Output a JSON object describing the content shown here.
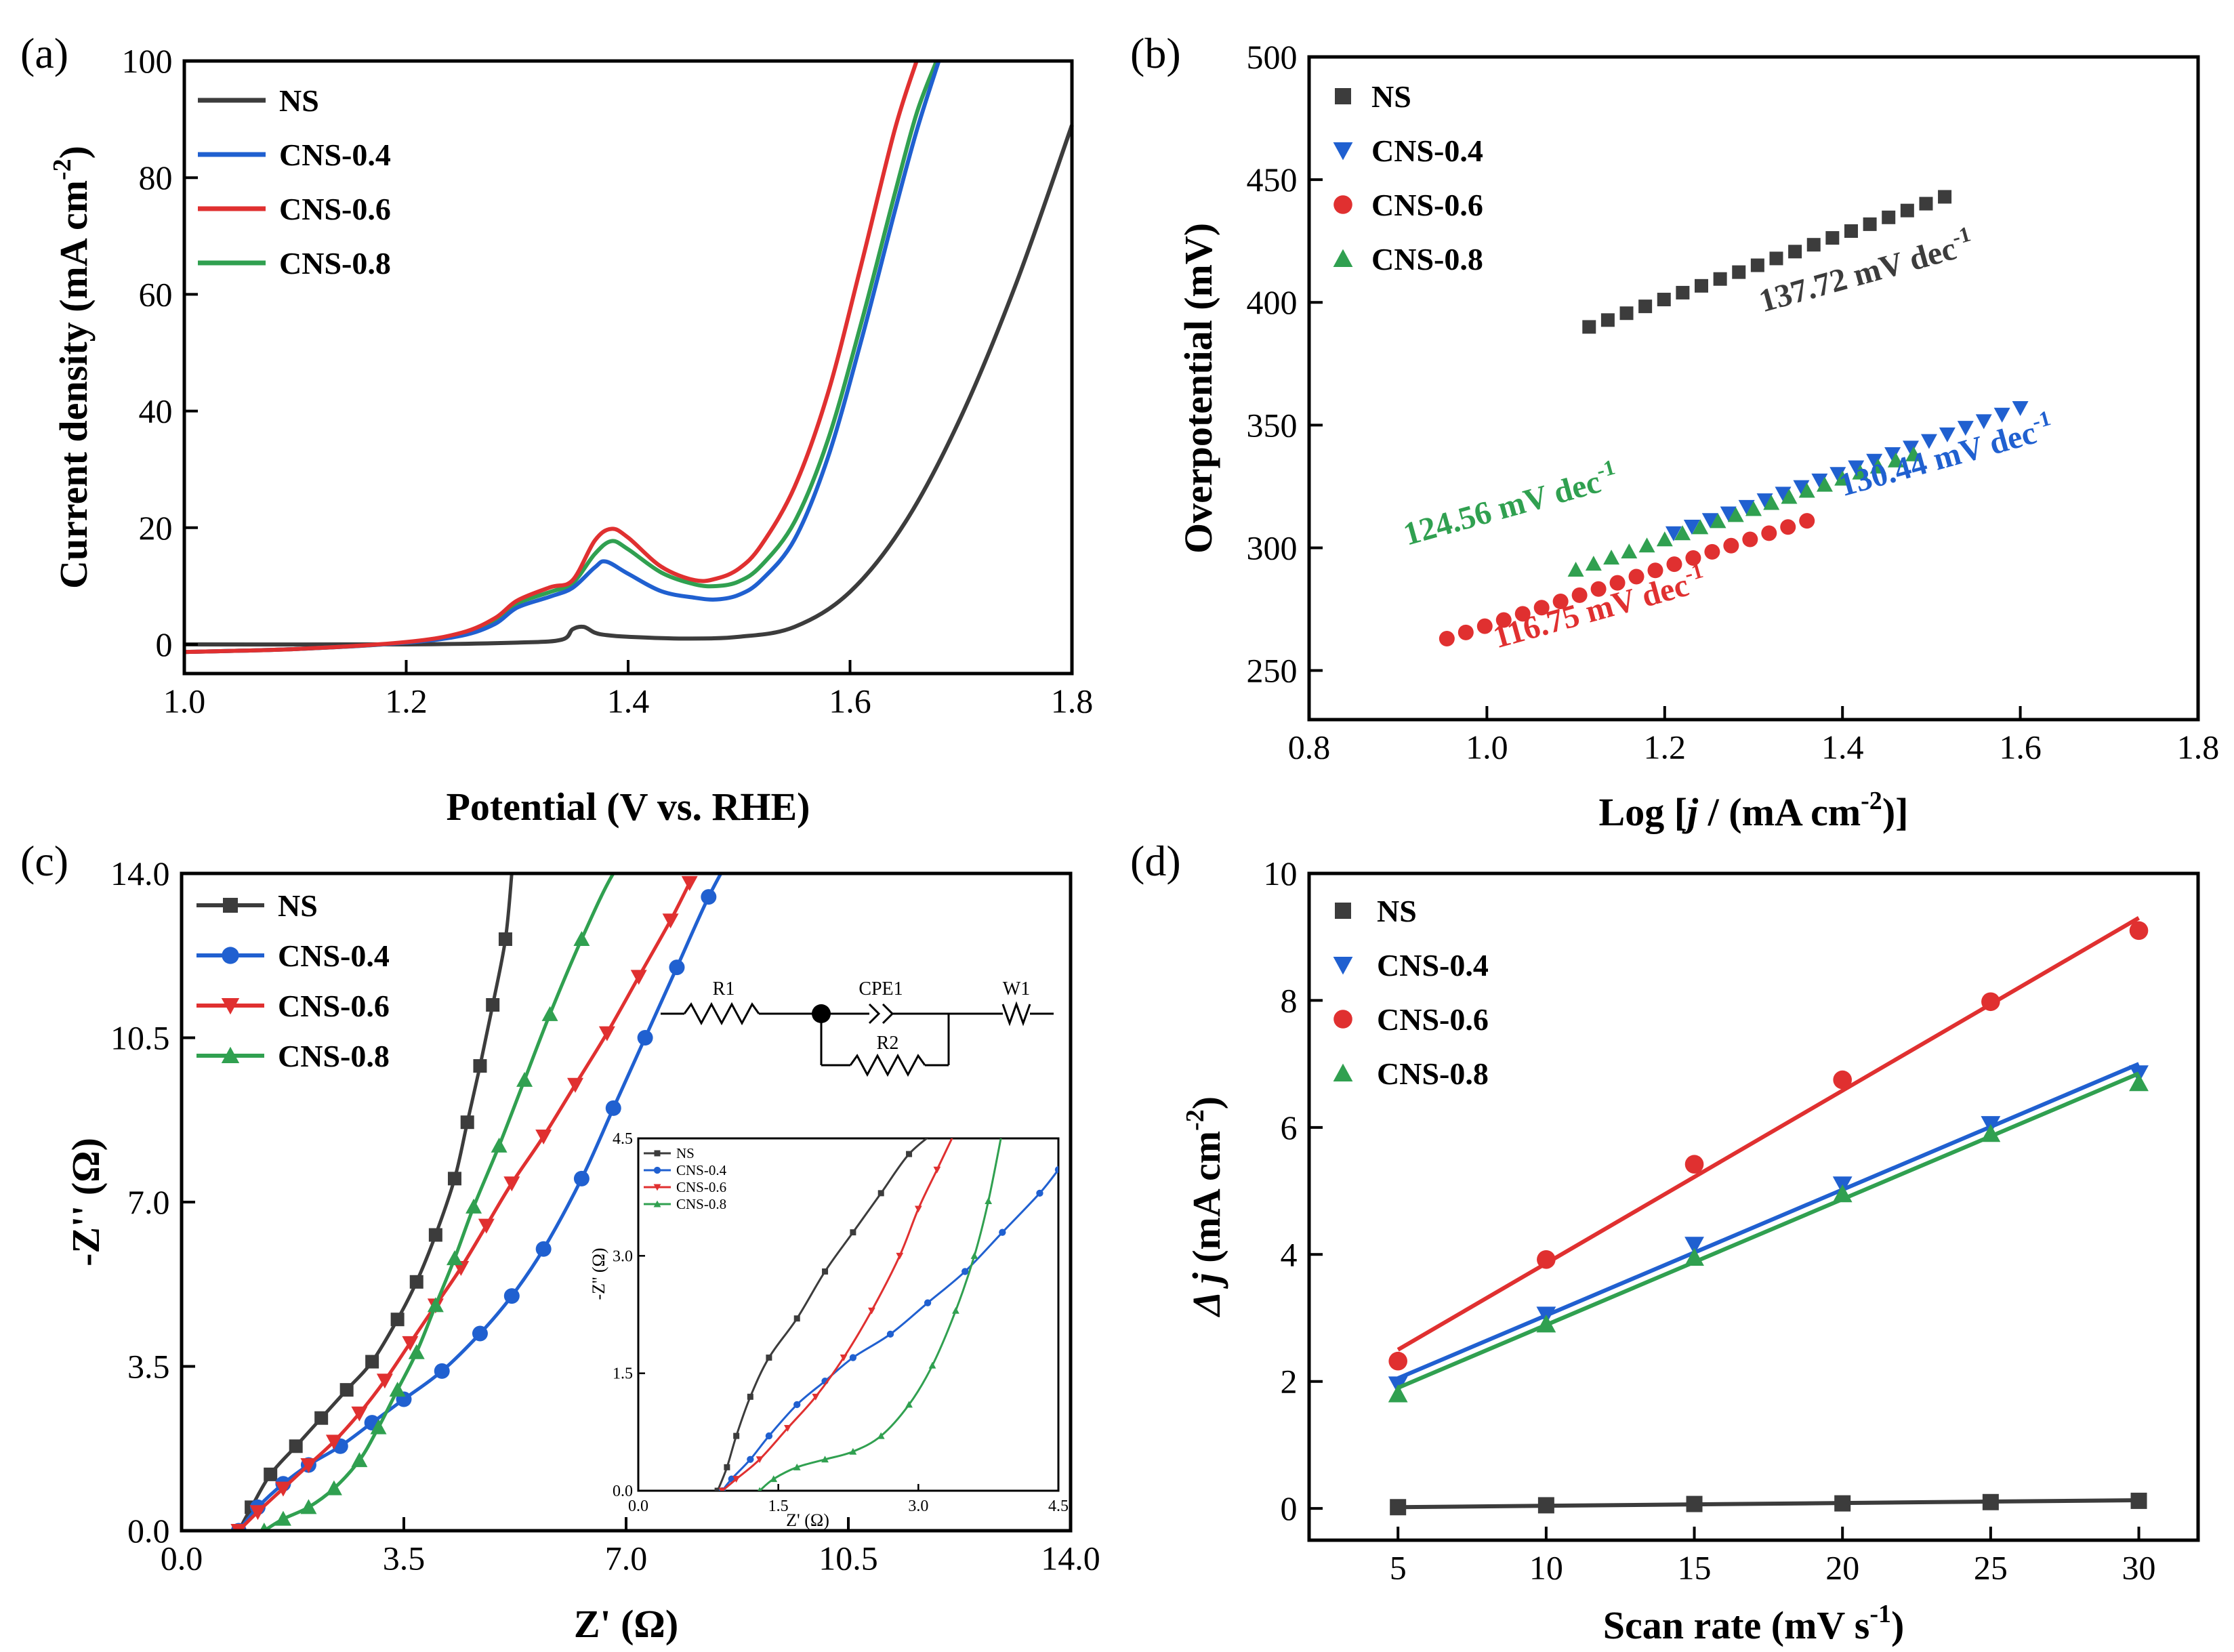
{
  "colors": {
    "NS": "#3c3c3c",
    "CNS-0.4": "#2060d0",
    "CNS-0.6": "#e03030",
    "CNS-0.8": "#30a050"
  },
  "chart_data": [
    {
      "id": "a",
      "panel_label": "(a)",
      "type": "line",
      "xlabel": "Potential (V vs. RHE)",
      "ylabel_main": "Current density (mA cm",
      "ylabel_sup": "-2",
      "ylabel_end": ")",
      "xlim": [
        1.0,
        1.8
      ],
      "ylim": [
        -5,
        100
      ],
      "xticks": [
        1.0,
        1.2,
        1.4,
        1.6,
        1.8
      ],
      "xtick_labels": [
        "1.0",
        "1.2",
        "1.4",
        "1.6",
        "1.8"
      ],
      "yticks": [
        0,
        20,
        40,
        60,
        80,
        100
      ],
      "ytick_labels": [
        "0",
        "20",
        "40",
        "60",
        "80",
        "100"
      ],
      "legend": [
        "NS",
        "CNS-0.4",
        "CNS-0.6",
        "CNS-0.8"
      ],
      "series": [
        {
          "name": "NS",
          "x": [
            1.0,
            1.2,
            1.3,
            1.34,
            1.35,
            1.36,
            1.37,
            1.38,
            1.4,
            1.45,
            1.5,
            1.55,
            1.6,
            1.65,
            1.7,
            1.75,
            1.8
          ],
          "y": [
            0,
            0,
            0.3,
            0.8,
            2.6,
            3.0,
            2.0,
            1.6,
            1.3,
            1.0,
            1.3,
            3,
            9,
            21,
            39,
            62,
            89
          ]
        },
        {
          "name": "CNS-0.4",
          "x": [
            1.0,
            1.1,
            1.2,
            1.25,
            1.28,
            1.3,
            1.33,
            1.35,
            1.37,
            1.38,
            1.4,
            1.43,
            1.46,
            1.48,
            1.5,
            1.52,
            1.55,
            1.58,
            1.61,
            1.64,
            1.66,
            1.68
          ],
          "y": [
            -1.3,
            -0.8,
            0.3,
            1.5,
            3.5,
            6.3,
            8.2,
            9.7,
            13.2,
            14.2,
            12.1,
            9.1,
            8.0,
            7.7,
            8.5,
            11,
            18,
            32,
            52,
            74,
            88,
            100
          ]
        },
        {
          "name": "CNS-0.6",
          "x": [
            1.0,
            1.1,
            1.2,
            1.25,
            1.28,
            1.3,
            1.33,
            1.35,
            1.37,
            1.385,
            1.4,
            1.43,
            1.46,
            1.48,
            1.5,
            1.52,
            1.55,
            1.58,
            1.61,
            1.64,
            1.66
          ],
          "y": [
            -1.3,
            -0.8,
            0.4,
            2,
            4.5,
            7.5,
            9.8,
            11,
            17.8,
            19.8,
            18.3,
            13.3,
            11,
            11.3,
            13,
            17,
            27,
            43,
            65,
            88,
            100
          ]
        },
        {
          "name": "CNS-0.8",
          "x": [
            1.0,
            1.1,
            1.2,
            1.25,
            1.28,
            1.3,
            1.33,
            1.35,
            1.37,
            1.385,
            1.4,
            1.43,
            1.46,
            1.48,
            1.5,
            1.52,
            1.55,
            1.58,
            1.61,
            1.64,
            1.66,
            1.678
          ],
          "y": [
            -1.3,
            -0.8,
            0.3,
            1.7,
            4,
            7,
            9,
            10.5,
            15.5,
            17.7,
            16.3,
            12.3,
            10.3,
            10,
            10.8,
            13.5,
            21,
            35,
            55,
            77,
            91,
            100
          ]
        }
      ]
    },
    {
      "id": "b",
      "panel_label": "(b)",
      "type": "scatter",
      "xlabel_pre": "Log [",
      "xlabel_italic": "j",
      "xlabel_mid": " / (mA cm",
      "xlabel_sup": "-2",
      "xlabel_end": ")]",
      "ylabel": "Overpotential (mV)",
      "xlim": [
        0.8,
        1.8
      ],
      "ylim": [
        230,
        500
      ],
      "xticks": [
        0.8,
        1.0,
        1.2,
        1.4,
        1.6,
        1.8
      ],
      "xtick_labels": [
        "0.8",
        "1.0",
        "1.2",
        "1.4",
        "1.6",
        "1.8"
      ],
      "yticks": [
        250,
        300,
        350,
        400,
        450,
        500
      ],
      "ytick_labels": [
        "250",
        "300",
        "350",
        "400",
        "450",
        "500"
      ],
      "legend": [
        "NS",
        "CNS-0.4",
        "CNS-0.6",
        "CNS-0.8"
      ],
      "series": [
        {
          "name": "NS",
          "x_start": 1.115,
          "x_end": 1.515,
          "y_start": 390,
          "y_end": 443,
          "n": 20
        },
        {
          "name": "CNS-0.4",
          "x_start": 1.21,
          "x_end": 1.6,
          "y_start": 306,
          "y_end": 357,
          "n": 20
        },
        {
          "name": "CNS-0.6",
          "x_start": 0.955,
          "x_end": 1.36,
          "y_start": 263,
          "y_end": 311,
          "n": 20
        },
        {
          "name": "CNS-0.8",
          "x_start": 1.1,
          "x_end": 1.48,
          "y_start": 291,
          "y_end": 338,
          "n": 20
        }
      ],
      "annotations": [
        {
          "series": "NS",
          "mantissa": "137.72 mV dec",
          "exp": "-1",
          "at": [
            1.43,
            408
          ],
          "angle": -15.5
        },
        {
          "series": "CNS-0.4",
          "mantissa": "130.44 mV dec",
          "exp": "-1",
          "at": [
            1.52,
            333
          ],
          "angle": -15.5
        },
        {
          "series": "CNS-0.6",
          "mantissa": "116.75 mV dec",
          "exp": "-1",
          "at": [
            1.13,
            271
          ],
          "angle": -15.5
        },
        {
          "series": "CNS-0.8",
          "mantissa": "124.56 mV dec",
          "exp": "-1",
          "at": [
            1.03,
            313
          ],
          "angle": -15.5
        }
      ]
    },
    {
      "id": "c",
      "panel_label": "(c)",
      "type": "scatter",
      "xlabel": "Z' (Ω)",
      "ylabel": "-Z'' (Ω)",
      "xlim": [
        0,
        14
      ],
      "ylim": [
        0,
        14
      ],
      "xticks": [
        0,
        3.5,
        7,
        10.5,
        14
      ],
      "xtick_labels": [
        "0.0",
        "3.5",
        "7.0",
        "10.5",
        "14.0"
      ],
      "yticks": [
        0,
        3.5,
        7,
        10.5,
        14
      ],
      "ytick_labels": [
        "0.0",
        "3.5",
        "7.0",
        "10.5",
        "14.0"
      ],
      "legend": [
        "NS",
        "CNS-0.4",
        "CNS-0.6",
        "CNS-0.8"
      ],
      "series": [
        {
          "name": "NS",
          "x": [
            0.9,
            1.1,
            1.4,
            1.8,
            2.2,
            2.6,
            3.0,
            3.4,
            3.7,
            4.0,
            4.3,
            4.5,
            4.7,
            4.9,
            5.1,
            5.2
          ],
          "y": [
            0,
            0.5,
            1.2,
            1.8,
            2.4,
            3.0,
            3.6,
            4.5,
            5.3,
            6.3,
            7.5,
            8.7,
            9.9,
            11.2,
            12.6,
            14
          ]
        },
        {
          "name": "CNS-0.4",
          "x": [
            0.9,
            1.2,
            1.6,
            2.0,
            2.5,
            3.0,
            3.5,
            4.1,
            4.7,
            5.2,
            5.7,
            6.3,
            6.8,
            7.3,
            7.8,
            8.3,
            8.7
          ],
          "y": [
            0,
            0.5,
            1.0,
            1.4,
            1.8,
            2.3,
            2.8,
            3.4,
            4.2,
            5.0,
            6.0,
            7.5,
            9.0,
            10.5,
            12.0,
            13.5,
            14.5
          ]
        },
        {
          "name": "CNS-0.6",
          "x": [
            0.9,
            1.2,
            1.6,
            2.0,
            2.4,
            2.8,
            3.2,
            3.6,
            4.0,
            4.4,
            4.8,
            5.2,
            5.7,
            6.2,
            6.7,
            7.2,
            7.7,
            8.0
          ],
          "y": [
            0,
            0.4,
            0.9,
            1.4,
            1.9,
            2.5,
            3.2,
            4.0,
            4.8,
            5.6,
            6.5,
            7.4,
            8.4,
            9.5,
            10.6,
            11.8,
            13.0,
            13.8
          ]
        },
        {
          "name": "CNS-0.8",
          "x": [
            1.3,
            1.6,
            2.0,
            2.4,
            2.8,
            3.1,
            3.4,
            3.7,
            4.0,
            4.3,
            4.6,
            5.0,
            5.4,
            5.8,
            6.3,
            6.8,
            7.2
          ],
          "y": [
            0,
            0.25,
            0.5,
            0.9,
            1.5,
            2.2,
            3.0,
            3.8,
            4.8,
            5.8,
            6.9,
            8.2,
            9.6,
            11.0,
            12.6,
            14.0,
            14.6
          ]
        }
      ],
      "inset": {
        "xlim": [
          0,
          4.5
        ],
        "ylim": [
          0,
          4.5
        ],
        "xticks": [
          0,
          1.5,
          3.0,
          4.5
        ],
        "xtick_labels": [
          "0.0",
          "1.5",
          "3.0",
          "4.5"
        ],
        "yticks": [
          0,
          1.5,
          3.0,
          4.5
        ],
        "ytick_labels": [
          "0.0",
          "1.5",
          "3.0",
          "4.5"
        ],
        "xlabel": "Z' (Ω)",
        "ylabel": "-Z'' (Ω)",
        "legend": [
          "NS",
          "CNS-0.4",
          "CNS-0.6",
          "CNS-0.8"
        ],
        "series": [
          {
            "name": "NS",
            "x": [
              0.85,
              0.95,
              1.05,
              1.2,
              1.4,
              1.7,
              2.0,
              2.3,
              2.6,
              2.9,
              3.2
            ],
            "y": [
              0,
              0.3,
              0.7,
              1.2,
              1.7,
              2.2,
              2.8,
              3.3,
              3.8,
              4.3,
              4.6
            ]
          },
          {
            "name": "CNS-0.4",
            "x": [
              0.9,
              1.0,
              1.2,
              1.4,
              1.7,
              2.0,
              2.3,
              2.7,
              3.1,
              3.5,
              3.9,
              4.3,
              4.5
            ],
            "y": [
              0,
              0.15,
              0.4,
              0.7,
              1.1,
              1.4,
              1.7,
              2.0,
              2.4,
              2.8,
              3.3,
              3.8,
              4.1
            ]
          },
          {
            "name": "CNS-0.6",
            "x": [
              0.9,
              1.05,
              1.3,
              1.6,
              1.9,
              2.2,
              2.5,
              2.8,
              3.0,
              3.2,
              3.4
            ],
            "y": [
              0,
              0.15,
              0.4,
              0.8,
              1.2,
              1.7,
              2.3,
              3.0,
              3.6,
              4.1,
              4.6
            ]
          },
          {
            "name": "CNS-0.8",
            "x": [
              1.3,
              1.45,
              1.7,
              2.0,
              2.3,
              2.6,
              2.9,
              3.15,
              3.4,
              3.6,
              3.75,
              3.9
            ],
            "y": [
              0,
              0.15,
              0.3,
              0.4,
              0.5,
              0.7,
              1.1,
              1.6,
              2.3,
              3.0,
              3.7,
              4.6
            ]
          }
        ]
      },
      "circuit": {
        "labels": [
          "R1",
          "CPE1",
          "W1",
          "R2"
        ]
      }
    },
    {
      "id": "d",
      "panel_label": "(d)",
      "type": "scatter",
      "xlabel_main": "Scan rate (mV s",
      "xlabel_sup": "-1",
      "xlabel_end": ")",
      "ylabel_italic": "Δ j",
      "ylabel_main": " (mA cm",
      "ylabel_sup": "-2",
      "ylabel_end": ")",
      "xlim": [
        2,
        32
      ],
      "ylim": [
        -0.5,
        10
      ],
      "xticks": [
        5,
        10,
        15,
        20,
        25,
        30
      ],
      "xtick_labels": [
        "5",
        "10",
        "15",
        "20",
        "25",
        "30"
      ],
      "yticks": [
        0,
        2,
        4,
        6,
        8,
        10
      ],
      "ytick_labels": [
        "0",
        "2",
        "4",
        "6",
        "8",
        "10"
      ],
      "legend": [
        "NS",
        "CNS-0.4",
        "CNS-0.6",
        "CNS-0.8"
      ],
      "series": [
        {
          "name": "NS",
          "x": [
            5,
            10,
            15,
            20,
            25,
            30
          ],
          "y": [
            0.02,
            0.05,
            0.07,
            0.08,
            0.1,
            0.12
          ],
          "fit": [
            0.02,
            0.13
          ]
        },
        {
          "name": "CNS-0.4",
          "x": [
            5,
            10,
            15,
            20,
            25,
            30
          ],
          "y": [
            1.95,
            3.05,
            4.15,
            5.1,
            6.05,
            6.85
          ],
          "fit": [
            2.05,
            7.0
          ]
        },
        {
          "name": "CNS-0.6",
          "x": [
            5,
            10,
            15,
            20,
            25,
            30
          ],
          "y": [
            2.32,
            3.92,
            5.42,
            6.75,
            7.98,
            9.1
          ],
          "fit": [
            2.5,
            9.3
          ]
        },
        {
          "name": "CNS-0.8",
          "x": [
            5,
            10,
            15,
            20,
            25,
            30
          ],
          "y": [
            1.8,
            2.9,
            3.95,
            4.95,
            5.9,
            6.7
          ],
          "fit": [
            1.9,
            6.85
          ]
        }
      ]
    }
  ]
}
